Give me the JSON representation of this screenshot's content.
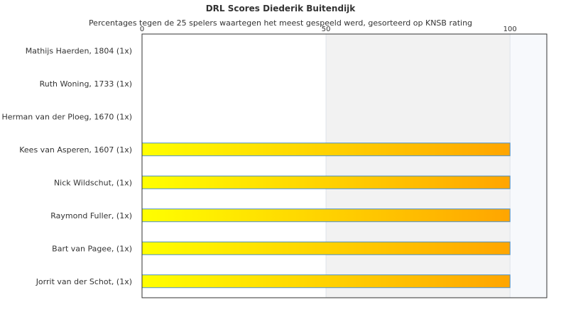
{
  "chart_data": {
    "type": "bar",
    "orientation": "horizontal",
    "title": "DRL Scores Diederik Buitendijk",
    "subtitle": "Percentages tegen de 25 spelers waartegen het meest gespeeld werd, gesorteerd op KNSB rating",
    "categories": [
      "Mathijs Haerden, 1804 (1x)",
      "Ruth Woning, 1733 (1x)",
      "Herman van der Ploeg, 1670 (1x)",
      "Kees van Asperen, 1607 (1x)",
      "Nick Wildschut,  (1x)",
      "Raymond Fuller,  (1x)",
      "Bart van Pagee,  (1x)",
      "Jorrit van der Schot,  (1x)"
    ],
    "values": [
      0,
      0,
      0,
      100,
      100,
      100,
      100,
      100
    ],
    "xlim": [
      0,
      110
    ],
    "xticks": [
      "0",
      "50",
      "100"
    ],
    "grid": true,
    "legend": "none",
    "colors": {
      "bar_start": "#ffff00",
      "bar_end": "#ffa500",
      "bar_border": "#4a90c8",
      "band_light": "#f2f2f2",
      "band_lighter": "#f7f9fc",
      "axis": "#333333"
    }
  }
}
